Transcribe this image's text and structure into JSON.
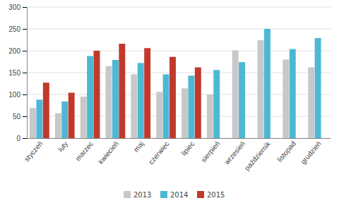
{
  "chart_data": {
    "type": "bar",
    "categories": [
      "styczeń",
      "luty",
      "marzec",
      "kwiecień",
      "maj",
      "czerwiec",
      "lipiec",
      "sierpień",
      "wrzesień",
      "październik",
      "listopad",
      "grudzień"
    ],
    "series": [
      {
        "name": "2013",
        "color": "#c8c8c8",
        "values": [
          69,
          57,
          95,
          165,
          146,
          106,
          114,
          100,
          201,
          224,
          180,
          162
        ]
      },
      {
        "name": "2014",
        "color": "#4db8d4",
        "values": [
          88,
          84,
          188,
          179,
          172,
          146,
          143,
          156,
          174,
          250,
          204,
          229
        ]
      },
      {
        "name": "2015",
        "color": "#c0392b",
        "values": [
          127,
          104,
          200,
          216,
          206,
          186,
          162,
          null,
          null,
          null,
          null,
          null
        ]
      }
    ],
    "ylim": [
      0,
      300
    ],
    "yticks": [
      0,
      50,
      100,
      150,
      200,
      250,
      300
    ],
    "grid": true,
    "legend": "bottom"
  }
}
